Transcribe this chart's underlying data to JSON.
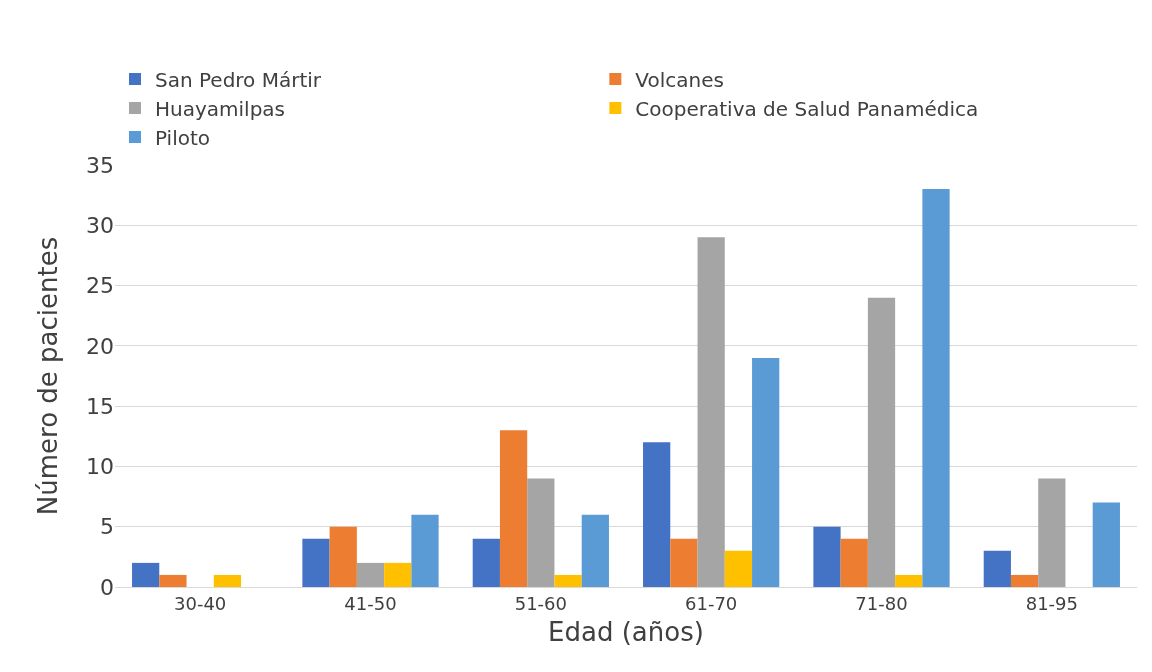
{
  "chart_data": {
    "type": "bar",
    "xlabel": "Edad (años)",
    "ylabel": "Número de pacientes",
    "categories": [
      "30-40",
      "41-50",
      "51-60",
      "61-70",
      "71-80",
      "81-95"
    ],
    "series": [
      {
        "name": "San Pedro Mártir",
        "color": "#4472c4",
        "values": [
          2,
          4,
          4,
          12,
          5,
          3
        ]
      },
      {
        "name": "Volcanes",
        "color": "#ed7d31",
        "values": [
          1,
          5,
          13,
          4,
          4,
          1
        ]
      },
      {
        "name": "Huayamilpas",
        "color": "#a5a5a5",
        "values": [
          0,
          2,
          9,
          29,
          24,
          9
        ]
      },
      {
        "name": "Cooperativa de Salud Panamédica",
        "color": "#ffc000",
        "values": [
          1,
          2,
          1,
          3,
          1,
          0
        ]
      },
      {
        "name": "Piloto",
        "color": "#5b9bd5",
        "values": [
          0,
          6,
          6,
          19,
          33,
          7
        ]
      }
    ],
    "ylim": [
      0,
      35
    ],
    "yticks": [
      0,
      5,
      10,
      15,
      20,
      25,
      30,
      35
    ],
    "grid": "y",
    "legend": "top"
  }
}
